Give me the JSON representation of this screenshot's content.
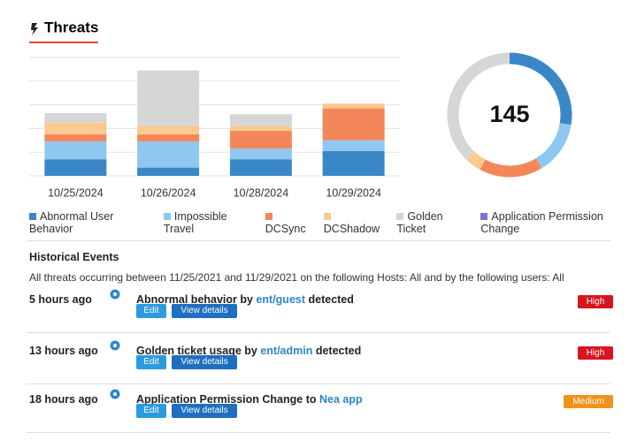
{
  "header": {
    "title": "Threats"
  },
  "chart_data": [
    {
      "type": "bar",
      "stacked": true,
      "categories": [
        "10/25/2024",
        "10/26/2024",
        "10/28/2024",
        "10/29/2024"
      ],
      "series": [
        {
          "name": "Abnormal User Behavior",
          "color": "#3a87c8",
          "values": [
            0.7,
            0.35,
            0.7,
            1.05
          ]
        },
        {
          "name": "Impossible Travel",
          "color": "#8ec8f0",
          "values": [
            0.75,
            1.1,
            0.45,
            0.45
          ]
        },
        {
          "name": "DCSync",
          "color": "#f4875a",
          "values": [
            0.3,
            0.3,
            0.75,
            1.35
          ]
        },
        {
          "name": "DCShadow",
          "color": "#fbc98e",
          "values": [
            0.5,
            0.35,
            0.2,
            0.2
          ]
        },
        {
          "name": "Golden Ticket",
          "color": "#d6d6d6",
          "values": [
            0.4,
            2.35,
            0.5,
            0
          ]
        },
        {
          "name": "Application Permission Change",
          "color": "#7b6fd8",
          "values": [
            0,
            0,
            0,
            0
          ]
        }
      ],
      "ylim": [
        0,
        5
      ],
      "yticks": [
        0,
        1,
        2,
        3,
        4,
        5
      ],
      "grid": true
    },
    {
      "type": "donut",
      "total": 145,
      "values": [
        40,
        20,
        24,
        6,
        55
      ],
      "colors": [
        "#3a87c8",
        "#8ec8f0",
        "#f4875a",
        "#fbc98e",
        "#d6d6d6"
      ]
    }
  ],
  "history": {
    "title": "Historical Events",
    "description": "All threats occurring between 11/25/2021 and 11/29/2021 on the following Hosts: All and by the following users: All",
    "events": [
      {
        "time": "5 hours ago",
        "text_before": "Abnormal behavior by ",
        "link": "ent/guest",
        "text_after": " detected",
        "edit": "Edit",
        "details": "View details",
        "severity": "High",
        "severity_color": "#d9141e"
      },
      {
        "time": "13 hours ago",
        "text_before": "Golden ticket usage by ",
        "link": "ent/admin",
        "text_after": " detected",
        "edit": "Edit",
        "details": "View details",
        "severity": "High",
        "severity_color": "#d9141e"
      },
      {
        "time": "18 hours ago",
        "text_before": "Application Permission Change to ",
        "link": "Nea app",
        "edit": "Edit",
        "details": "View details",
        "severity": "Medium",
        "severity_color": "#f0931a"
      }
    ]
  }
}
